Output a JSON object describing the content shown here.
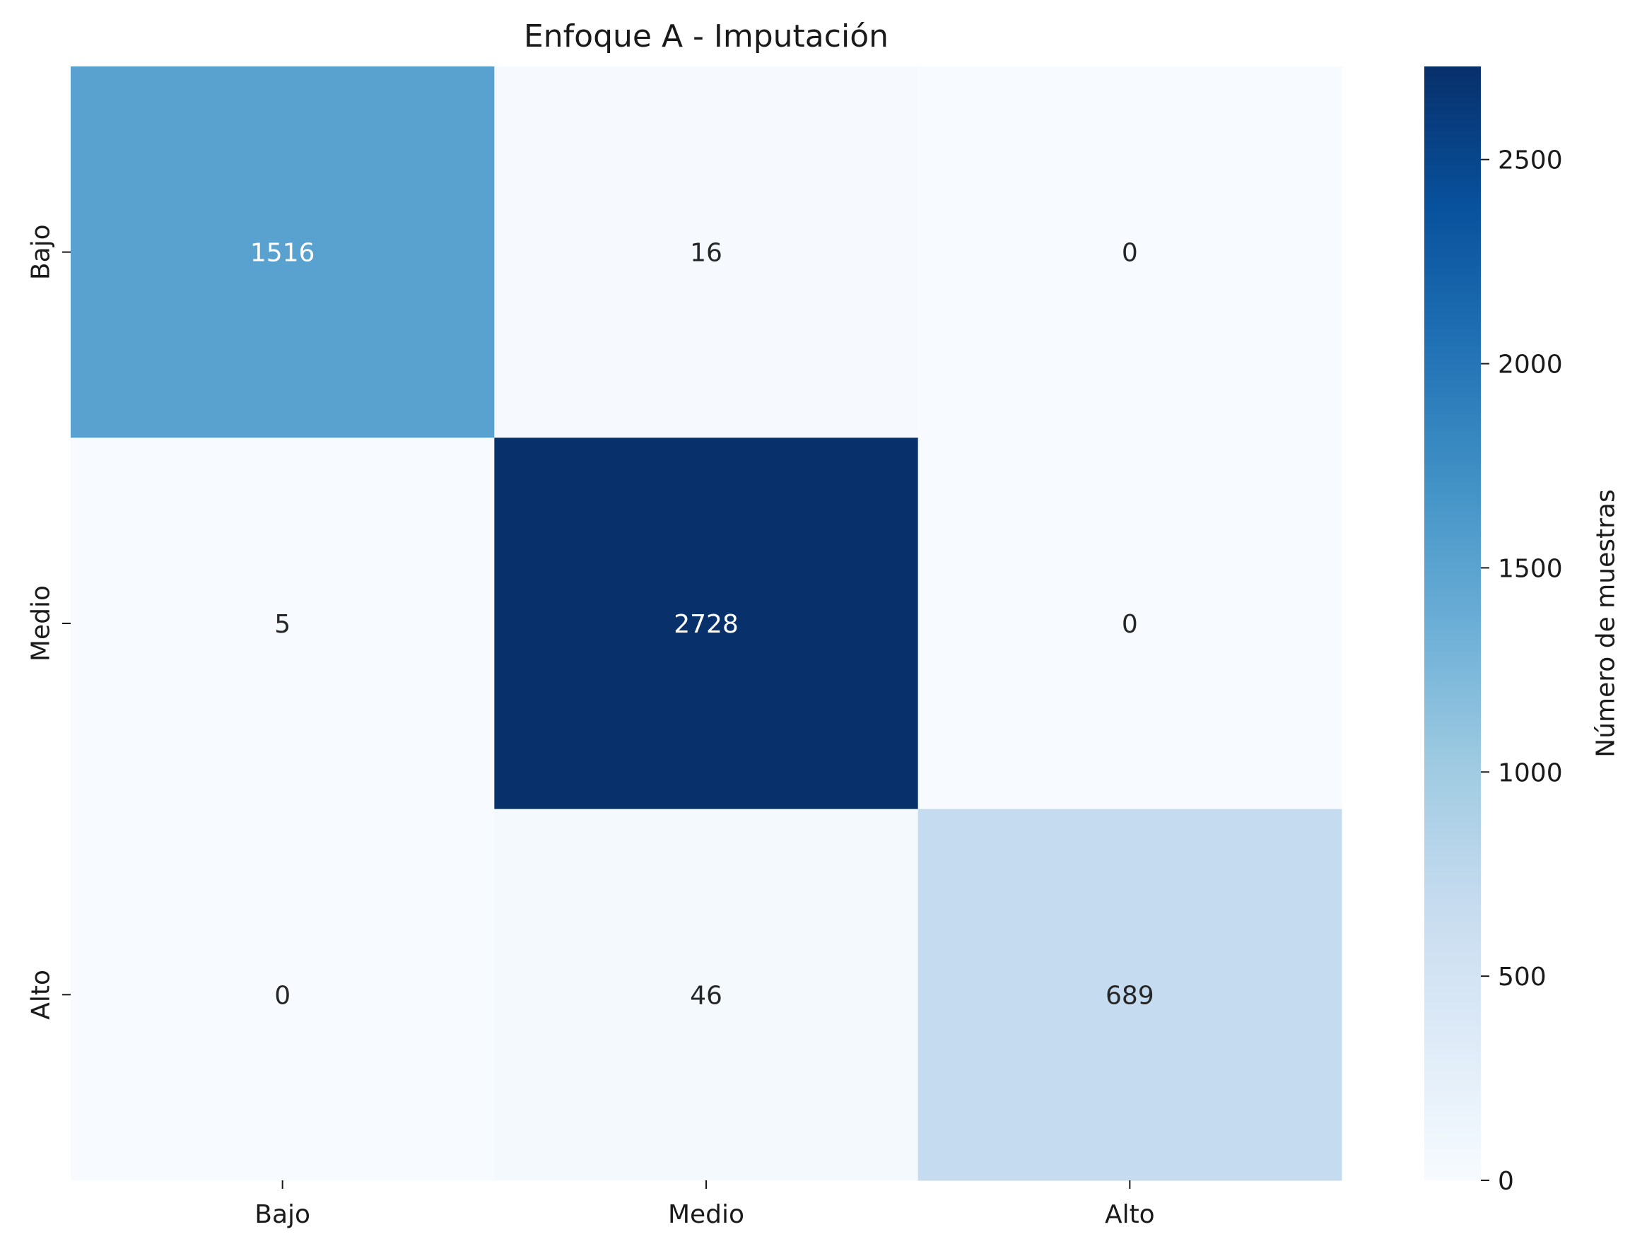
{
  "chart_data": {
    "type": "heatmap",
    "title": "Enfoque A - Imputación",
    "xlabel": "",
    "ylabel": "",
    "row_categories": [
      "Bajo",
      "Medio",
      "Alto"
    ],
    "col_categories": [
      "Bajo",
      "Medio",
      "Alto"
    ],
    "values": [
      [
        1516,
        16,
        0
      ],
      [
        5,
        2728,
        0
      ],
      [
        0,
        46,
        689
      ]
    ],
    "colormap": "Blues",
    "colorbar": {
      "label": "Número de muestras",
      "range": [
        0,
        2728
      ],
      "ticks": [
        0,
        500,
        1000,
        1500,
        2000,
        2500
      ]
    },
    "text_color_dark": "#262626",
    "text_color_light": "#ffffff",
    "grid": false
  }
}
